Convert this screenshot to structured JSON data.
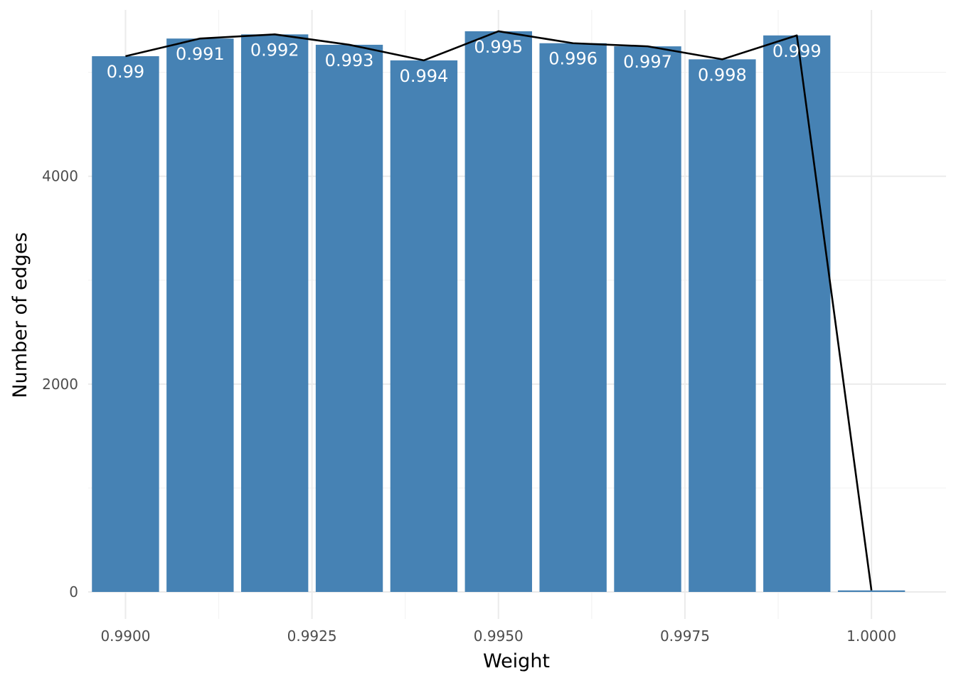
{
  "chart_data": {
    "type": "bar",
    "title": "",
    "xlabel": "Weight",
    "ylabel": "Number of edges",
    "x": [
      0.99,
      0.991,
      0.992,
      0.993,
      0.994,
      0.995,
      0.996,
      0.997,
      0.998,
      0.999,
      1.0
    ],
    "values": [
      5155,
      5325,
      5365,
      5265,
      5115,
      5395,
      5280,
      5250,
      5125,
      5355,
      15
    ],
    "bar_labels": [
      "0.99",
      "0.991",
      "0.992",
      "0.993",
      "0.994",
      "0.995",
      "0.996",
      "0.997",
      "0.998",
      "0.999",
      ""
    ],
    "line_values": [
      5155,
      5325,
      5365,
      5265,
      5115,
      5395,
      5280,
      5250,
      5125,
      5355,
      15
    ],
    "xlim": [
      0.9895,
      1.001
    ],
    "ylim": [
      -260,
      5600
    ],
    "x_ticks": [
      0.99,
      0.9925,
      0.995,
      0.9975,
      1.0
    ],
    "x_tick_labels": [
      "0.9900",
      "0.9925",
      "0.9950",
      "0.9975",
      "1.0000"
    ],
    "y_ticks": [
      0,
      2000,
      4000
    ],
    "y_tick_labels": [
      "0",
      "2000",
      "4000"
    ],
    "bar_width": 0.0009,
    "bar_color": "#4682b4",
    "line_color": "#000000",
    "grid": true,
    "legend": "none"
  }
}
